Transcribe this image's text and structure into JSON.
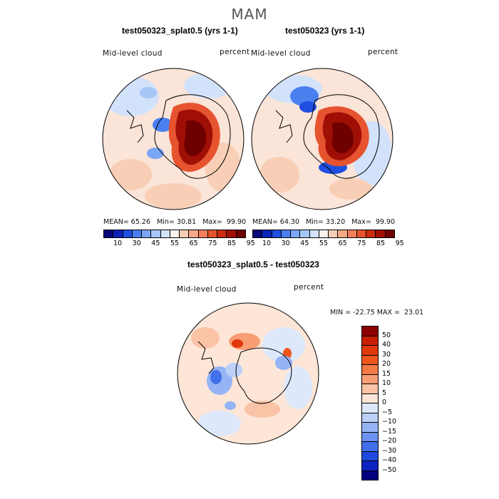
{
  "season": "MAM",
  "panels": [
    {
      "title": "test050323_splat0.5 (yrs 1-1)",
      "variable": "Mid-level cloud",
      "units": "percent",
      "stats": {
        "mean_label": "MEAN=",
        "mean": "65.26",
        "min_label": "Min=",
        "min": "30.81",
        "max_label": "Max=",
        "max": "99.90"
      }
    },
    {
      "title": "test050323 (yrs 1-1)",
      "variable": "Mid-level cloud",
      "units": "percent",
      "stats": {
        "mean_label": "MEAN=",
        "mean": "64.30",
        "min_label": "Min=",
        "min": "33.20",
        "max_label": "Max=",
        "max": "99.90"
      }
    }
  ],
  "colorbar_top": {
    "labels": [
      "10",
      "30",
      "45",
      "55",
      "65",
      "75",
      "85",
      "95"
    ],
    "colors": [
      "#08087a",
      "#0a23b8",
      "#1f4ee0",
      "#4a7ff0",
      "#7aa6f5",
      "#a6c6f8",
      "#d2e2fa",
      "#fbf2ec",
      "#f8cfb6",
      "#f5a987",
      "#f27f5b",
      "#e6532f",
      "#cc2c10",
      "#a00f05",
      "#6e0000"
    ]
  },
  "diff_panel": {
    "title": "test050323_splat0.5 - test050323",
    "variable": "Mid-level cloud",
    "units": "percent",
    "minmax": {
      "min_label": "MIN =",
      "min": "-22.75",
      "max_label": "MAX =",
      "max": "23.01"
    }
  },
  "colorbar_diff": {
    "labels": [
      "50",
      "40",
      "30",
      "20",
      "15",
      "10",
      "5",
      "0",
      "−5",
      "−10",
      "−15",
      "−20",
      "−30",
      "−40",
      "−50"
    ],
    "colors": [
      "#8c0000",
      "#c81e00",
      "#e0380a",
      "#f0561c",
      "#f47a45",
      "#f89d74",
      "#fbc3a6",
      "#fde6d8",
      "#dde8fb",
      "#bcd0f8",
      "#95b4f5",
      "#6c93f0",
      "#4270ea",
      "#1f48dd",
      "#0c22c0",
      "#000080"
    ]
  }
}
